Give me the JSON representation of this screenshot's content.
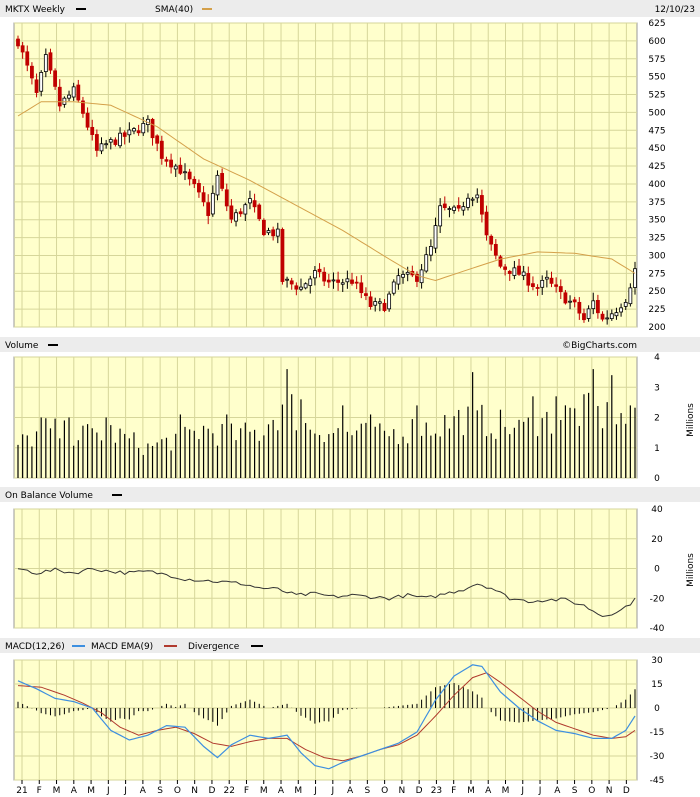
{
  "header": {
    "ticker_label": "MKTX Weekly",
    "sma_label": "SMA(40)",
    "date_label": "12/10/23",
    "ticker_legend_color": "#000000",
    "sma_legend_color": "#d4a04a"
  },
  "volume_header": {
    "label": "Volume",
    "watermark": "©BigCharts.com",
    "units": "Millions"
  },
  "obv_header": {
    "label": "On Balance Volume",
    "units": "Millions"
  },
  "macd_header": {
    "macd_label": "MACD(12,26)",
    "ema_label": "MACD EMA(9)",
    "div_label": "Divergence",
    "macd_color": "#3d8fe0",
    "ema_color": "#b03a2e",
    "div_color": "#000000"
  },
  "colors": {
    "plot_bg": "#ffffcc",
    "grid": "#d6d69a",
    "header_bg": "#ececec",
    "up": "#000000",
    "down": "#c00000",
    "sma": "#d4a04a",
    "obv": "#333333"
  },
  "x_axis": {
    "labels": [
      "21",
      "F",
      "M",
      "A",
      "M",
      "J",
      "J",
      "A",
      "S",
      "O",
      "N",
      "D",
      "22",
      "F",
      "M",
      "A",
      "M",
      "J",
      "J",
      "A",
      "S",
      "O",
      "N",
      "D",
      "23",
      "F",
      "M",
      "A",
      "M",
      "J",
      "J",
      "A",
      "S",
      "O",
      "N",
      "D"
    ]
  },
  "chart_data": [
    {
      "type": "candlestick",
      "name": "price",
      "ylim": [
        200,
        625
      ],
      "yticks": [
        200,
        225,
        250,
        275,
        300,
        325,
        350,
        375,
        400,
        425,
        450,
        475,
        500,
        525,
        550,
        575,
        600,
        625
      ],
      "anchors": [
        {
          "w": 0,
          "v": 600
        },
        {
          "w": 4,
          "v": 525
        },
        {
          "w": 6,
          "v": 575
        },
        {
          "w": 9,
          "v": 510
        },
        {
          "w": 12,
          "v": 530
        },
        {
          "w": 14,
          "v": 500
        },
        {
          "w": 17,
          "v": 445
        },
        {
          "w": 19,
          "v": 455
        },
        {
          "w": 24,
          "v": 470
        },
        {
          "w": 28,
          "v": 485
        },
        {
          "w": 31,
          "v": 440
        },
        {
          "w": 35,
          "v": 420
        },
        {
          "w": 38,
          "v": 395
        },
        {
          "w": 41,
          "v": 360
        },
        {
          "w": 43,
          "v": 410
        },
        {
          "w": 46,
          "v": 350
        },
        {
          "w": 50,
          "v": 375
        },
        {
          "w": 53,
          "v": 335
        },
        {
          "w": 56,
          "v": 330
        },
        {
          "w": 57,
          "v": 265
        },
        {
          "w": 61,
          "v": 255
        },
        {
          "w": 64,
          "v": 275
        },
        {
          "w": 67,
          "v": 262
        },
        {
          "w": 72,
          "v": 265
        },
        {
          "w": 76,
          "v": 230
        },
        {
          "w": 79,
          "v": 230
        },
        {
          "w": 82,
          "v": 270
        },
        {
          "w": 86,
          "v": 270
        },
        {
          "w": 89,
          "v": 310
        },
        {
          "w": 91,
          "v": 365
        },
        {
          "w": 95,
          "v": 360
        },
        {
          "w": 97,
          "v": 385
        },
        {
          "w": 99,
          "v": 385
        },
        {
          "w": 101,
          "v": 325
        },
        {
          "w": 104,
          "v": 285
        },
        {
          "w": 108,
          "v": 275
        },
        {
          "w": 112,
          "v": 255
        },
        {
          "w": 114,
          "v": 265
        },
        {
          "w": 117,
          "v": 245
        },
        {
          "w": 120,
          "v": 230
        },
        {
          "w": 122,
          "v": 210
        },
        {
          "w": 124,
          "v": 235
        },
        {
          "w": 126,
          "v": 210
        },
        {
          "w": 129,
          "v": 225
        },
        {
          "w": 131,
          "v": 240
        },
        {
          "w": 133,
          "v": 280
        }
      ]
    },
    {
      "type": "line",
      "name": "SMA(40)",
      "anchors": [
        {
          "w": 0,
          "v": 495
        },
        {
          "w": 5,
          "v": 515
        },
        {
          "w": 12,
          "v": 515
        },
        {
          "w": 20,
          "v": 510
        },
        {
          "w": 30,
          "v": 480
        },
        {
          "w": 40,
          "v": 435
        },
        {
          "w": 50,
          "v": 405
        },
        {
          "w": 60,
          "v": 370
        },
        {
          "w": 70,
          "v": 335
        },
        {
          "w": 80,
          "v": 295
        },
        {
          "w": 86,
          "v": 272
        },
        {
          "w": 90,
          "v": 265
        },
        {
          "w": 96,
          "v": 278
        },
        {
          "w": 104,
          "v": 295
        },
        {
          "w": 112,
          "v": 305
        },
        {
          "w": 120,
          "v": 303
        },
        {
          "w": 128,
          "v": 295
        },
        {
          "w": 133,
          "v": 275
        }
      ]
    },
    {
      "type": "bar",
      "name": "Volume",
      "units": "Millions",
      "ylim": [
        0,
        4
      ],
      "yticks": [
        0,
        1,
        2,
        3,
        4
      ],
      "anchors": [
        {
          "w": 0,
          "v": 1.1
        },
        {
          "w": 6,
          "v": 1.6
        },
        {
          "w": 12,
          "v": 1.4
        },
        {
          "w": 20,
          "v": 1.5
        },
        {
          "w": 28,
          "v": 1.0
        },
        {
          "w": 34,
          "v": 1.3
        },
        {
          "w": 40,
          "v": 1.6
        },
        {
          "w": 46,
          "v": 1.4
        },
        {
          "w": 52,
          "v": 1.5
        },
        {
          "w": 58,
          "v": 2.5
        },
        {
          "w": 62,
          "v": 1.7
        },
        {
          "w": 70,
          "v": 1.5
        },
        {
          "w": 78,
          "v": 1.4
        },
        {
          "w": 84,
          "v": 1.6
        },
        {
          "w": 90,
          "v": 1.7
        },
        {
          "w": 96,
          "v": 2.0
        },
        {
          "w": 100,
          "v": 1.9
        },
        {
          "w": 108,
          "v": 1.6
        },
        {
          "w": 116,
          "v": 2.0
        },
        {
          "w": 122,
          "v": 2.2
        },
        {
          "w": 128,
          "v": 2.0
        },
        {
          "w": 133,
          "v": 1.8
        }
      ],
      "spikes": [
        {
          "w": 5,
          "v": 2.0
        },
        {
          "w": 11,
          "v": 2.0
        },
        {
          "w": 19,
          "v": 2.0
        },
        {
          "w": 35,
          "v": 2.1
        },
        {
          "w": 45,
          "v": 2.1
        },
        {
          "w": 58,
          "v": 3.6
        },
        {
          "w": 61,
          "v": 2.6
        },
        {
          "w": 70,
          "v": 2.4
        },
        {
          "w": 76,
          "v": 2.1
        },
        {
          "w": 86,
          "v": 2.4
        },
        {
          "w": 98,
          "v": 3.5
        },
        {
          "w": 111,
          "v": 2.7
        },
        {
          "w": 116,
          "v": 2.7
        },
        {
          "w": 124,
          "v": 3.6
        },
        {
          "w": 128,
          "v": 3.4
        },
        {
          "w": 132,
          "v": 2.4
        }
      ]
    },
    {
      "type": "line",
      "name": "On Balance Volume",
      "units": "Millions",
      "ylim": [
        -40,
        40
      ],
      "yticks": [
        -40,
        -20,
        0,
        20,
        40
      ],
      "anchors": [
        {
          "w": 0,
          "v": 0
        },
        {
          "w": 4,
          "v": -3
        },
        {
          "w": 8,
          "v": -1
        },
        {
          "w": 12,
          "v": -3
        },
        {
          "w": 16,
          "v": 0
        },
        {
          "w": 20,
          "v": -2
        },
        {
          "w": 24,
          "v": -3
        },
        {
          "w": 28,
          "v": -2
        },
        {
          "w": 32,
          "v": -4
        },
        {
          "w": 36,
          "v": -7
        },
        {
          "w": 40,
          "v": -8
        },
        {
          "w": 44,
          "v": -9
        },
        {
          "w": 48,
          "v": -10
        },
        {
          "w": 52,
          "v": -13
        },
        {
          "w": 56,
          "v": -14
        },
        {
          "w": 60,
          "v": -18
        },
        {
          "w": 64,
          "v": -17
        },
        {
          "w": 68,
          "v": -19
        },
        {
          "w": 72,
          "v": -18
        },
        {
          "w": 76,
          "v": -19
        },
        {
          "w": 80,
          "v": -20
        },
        {
          "w": 84,
          "v": -18
        },
        {
          "w": 88,
          "v": -20
        },
        {
          "w": 92,
          "v": -17
        },
        {
          "w": 96,
          "v": -14
        },
        {
          "w": 99,
          "v": -10
        },
        {
          "w": 102,
          "v": -13
        },
        {
          "w": 106,
          "v": -20
        },
        {
          "w": 110,
          "v": -22
        },
        {
          "w": 114,
          "v": -21
        },
        {
          "w": 118,
          "v": -21
        },
        {
          "w": 122,
          "v": -25
        },
        {
          "w": 126,
          "v": -32
        },
        {
          "w": 128,
          "v": -30
        },
        {
          "w": 130,
          "v": -28
        },
        {
          "w": 133,
          "v": -21
        }
      ]
    },
    {
      "type": "line",
      "name": "MACD",
      "ylim": [
        -45,
        30
      ],
      "yticks": [
        -45,
        -30,
        -15,
        0,
        15,
        30
      ],
      "macd_anchors": [
        {
          "w": 0,
          "v": 17
        },
        {
          "w": 4,
          "v": 12
        },
        {
          "w": 8,
          "v": 6
        },
        {
          "w": 12,
          "v": 4
        },
        {
          "w": 16,
          "v": 0
        },
        {
          "w": 20,
          "v": -14
        },
        {
          "w": 24,
          "v": -20
        },
        {
          "w": 28,
          "v": -17
        },
        {
          "w": 32,
          "v": -11
        },
        {
          "w": 36,
          "v": -12
        },
        {
          "w": 40,
          "v": -24
        },
        {
          "w": 43,
          "v": -31
        },
        {
          "w": 46,
          "v": -23
        },
        {
          "w": 50,
          "v": -17
        },
        {
          "w": 54,
          "v": -19
        },
        {
          "w": 58,
          "v": -17
        },
        {
          "w": 61,
          "v": -28
        },
        {
          "w": 64,
          "v": -36
        },
        {
          "w": 67,
          "v": -38
        },
        {
          "w": 70,
          "v": -34
        },
        {
          "w": 74,
          "v": -30
        },
        {
          "w": 78,
          "v": -26
        },
        {
          "w": 82,
          "v": -22
        },
        {
          "w": 86,
          "v": -15
        },
        {
          "w": 90,
          "v": 5
        },
        {
          "w": 94,
          "v": 20
        },
        {
          "w": 98,
          "v": 27
        },
        {
          "w": 100,
          "v": 26
        },
        {
          "w": 104,
          "v": 10
        },
        {
          "w": 108,
          "v": 0
        },
        {
          "w": 112,
          "v": -8
        },
        {
          "w": 116,
          "v": -14
        },
        {
          "w": 120,
          "v": -16
        },
        {
          "w": 124,
          "v": -19
        },
        {
          "w": 128,
          "v": -19
        },
        {
          "w": 131,
          "v": -14
        },
        {
          "w": 133,
          "v": -5
        }
      ],
      "ema_anchors": [
        {
          "w": 0,
          "v": 14
        },
        {
          "w": 5,
          "v": 13
        },
        {
          "w": 10,
          "v": 8
        },
        {
          "w": 14,
          "v": 3
        },
        {
          "w": 18,
          "v": -3
        },
        {
          "w": 22,
          "v": -12
        },
        {
          "w": 26,
          "v": -17
        },
        {
          "w": 30,
          "v": -14
        },
        {
          "w": 34,
          "v": -12
        },
        {
          "w": 38,
          "v": -16
        },
        {
          "w": 42,
          "v": -22
        },
        {
          "w": 46,
          "v": -24
        },
        {
          "w": 50,
          "v": -21
        },
        {
          "w": 54,
          "v": -19
        },
        {
          "w": 58,
          "v": -19
        },
        {
          "w": 62,
          "v": -26
        },
        {
          "w": 66,
          "v": -31
        },
        {
          "w": 70,
          "v": -33
        },
        {
          "w": 74,
          "v": -30
        },
        {
          "w": 78,
          "v": -26
        },
        {
          "w": 82,
          "v": -23
        },
        {
          "w": 86,
          "v": -17
        },
        {
          "w": 90,
          "v": -5
        },
        {
          "w": 94,
          "v": 8
        },
        {
          "w": 98,
          "v": 19
        },
        {
          "w": 101,
          "v": 22
        },
        {
          "w": 104,
          "v": 16
        },
        {
          "w": 108,
          "v": 7
        },
        {
          "w": 112,
          "v": -2
        },
        {
          "w": 116,
          "v": -9
        },
        {
          "w": 120,
          "v": -13
        },
        {
          "w": 124,
          "v": -17
        },
        {
          "w": 128,
          "v": -19
        },
        {
          "w": 131,
          "v": -18
        },
        {
          "w": 133,
          "v": -14
        }
      ]
    }
  ]
}
